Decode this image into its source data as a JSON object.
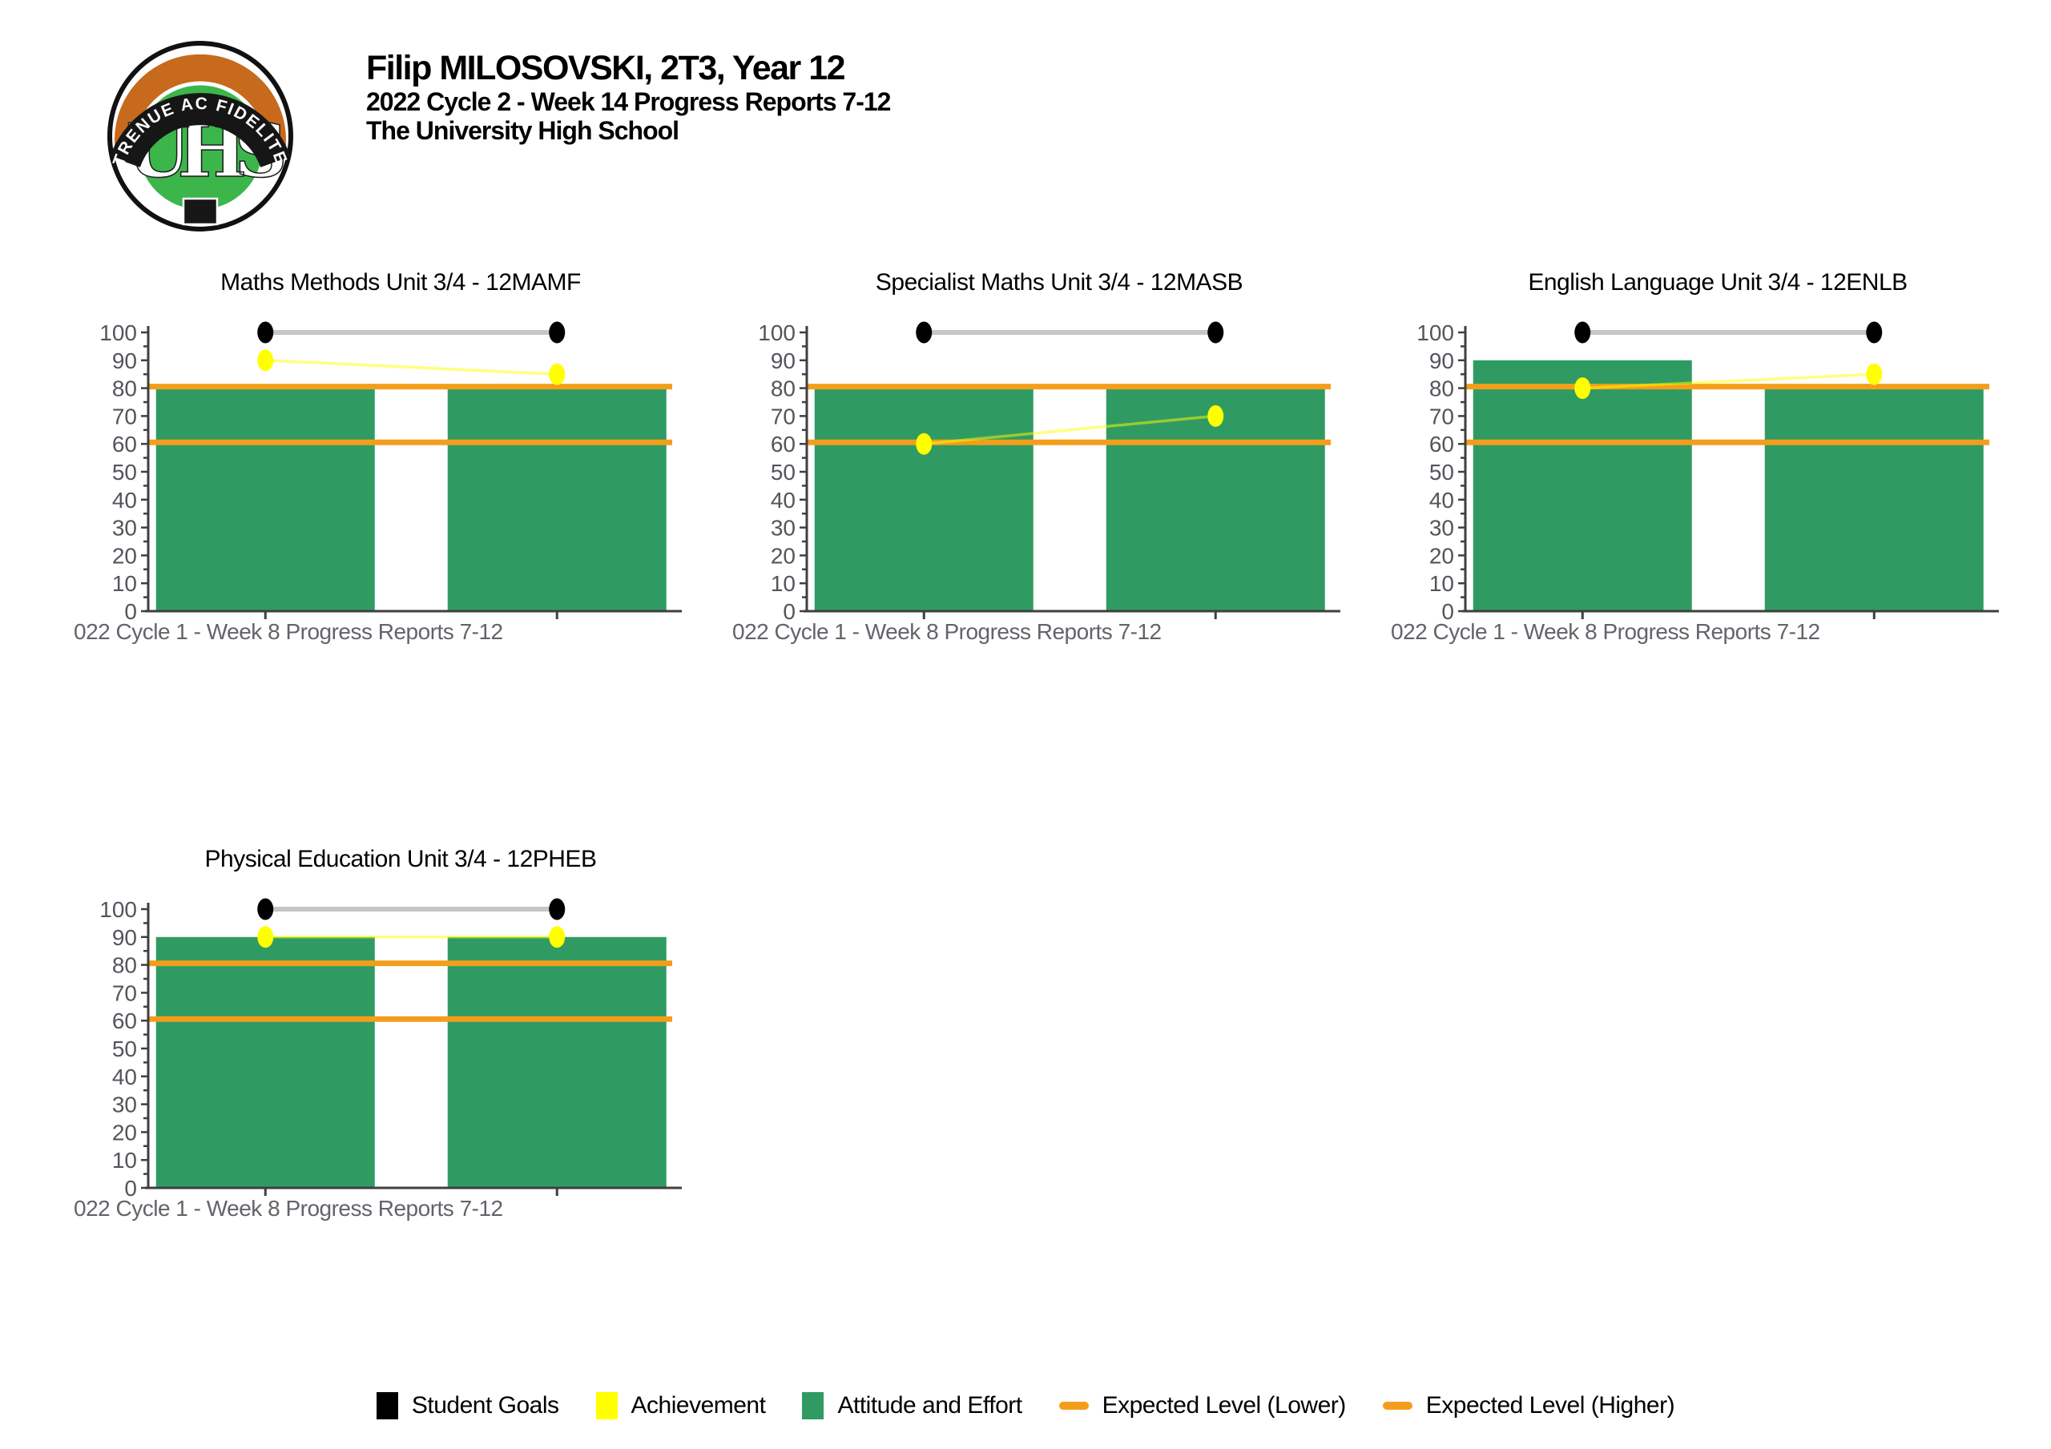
{
  "header": {
    "student_title": "Filip MILOSOVSKI, 2T3, Year 12",
    "report_title": "2022 Cycle 2 - Week 14 Progress Reports 7-12",
    "school_name": "The University High School"
  },
  "logo": {
    "monogram": "UHS",
    "motto": "STRENUE AC FIDELITER",
    "colors": {
      "orange": "#C76A1E",
      "green": "#3CB64A",
      "band": "#161616"
    }
  },
  "colors": {
    "bar_green": "#2F9B63",
    "expected_orange": "#F39E1B",
    "achievement_yellow": "#FFFF00",
    "goal_black": "#000000",
    "goal_line_gray": "#C6C6C6",
    "axis": "#3F3F3F",
    "y_tick_label": "#54545C",
    "x_label_gray": "#63636B"
  },
  "chart_data": [
    {
      "type": "bar",
      "title": "Maths Methods Unit 3/4 - 12MAMF",
      "x_axis_label_visible": "022 Cycle 1 - Week 8 Progress Reports 7-12",
      "ylim": [
        0,
        100
      ],
      "ytick_step": 10,
      "series": [
        {
          "name": "Attitude and Effort",
          "type": "bar",
          "color": "#2F9B63",
          "values": [
            80,
            80
          ]
        },
        {
          "name": "Expected Level (Lower)",
          "type": "hline",
          "color": "#F39E1B",
          "value": 60
        },
        {
          "name": "Expected Level (Higher)",
          "type": "hline",
          "color": "#F39E1B",
          "value": 80
        },
        {
          "name": "Student Goals",
          "type": "line",
          "marker_color": "#000000",
          "line_color": "#C6C6C6",
          "line_width": 6,
          "line_opacity": 1,
          "values": [
            100,
            100
          ]
        },
        {
          "name": "Achievement",
          "type": "line",
          "marker_color": "#FFFF00",
          "line_color": "#FFFF00",
          "line_width": 3.5,
          "line_opacity": 0.5,
          "values": [
            90,
            85
          ]
        }
      ]
    },
    {
      "type": "bar",
      "title": "Specialist Maths Unit 3/4 - 12MASB",
      "x_axis_label_visible": "022 Cycle 1 - Week 8 Progress Reports 7-12",
      "ylim": [
        0,
        100
      ],
      "ytick_step": 10,
      "series": [
        {
          "name": "Attitude and Effort",
          "type": "bar",
          "color": "#2F9B63",
          "values": [
            80,
            80
          ]
        },
        {
          "name": "Expected Level (Lower)",
          "type": "hline",
          "color": "#F39E1B",
          "value": 60
        },
        {
          "name": "Expected Level (Higher)",
          "type": "hline",
          "color": "#F39E1B",
          "value": 80
        },
        {
          "name": "Student Goals",
          "type": "line",
          "marker_color": "#000000",
          "line_color": "#C6C6C6",
          "line_width": 6,
          "line_opacity": 1,
          "values": [
            100,
            100
          ]
        },
        {
          "name": "Achievement",
          "type": "line",
          "marker_color": "#FFFF00",
          "line_color": "#FFFF00",
          "line_width": 3.5,
          "line_opacity": 0.5,
          "values": [
            60,
            70
          ]
        }
      ]
    },
    {
      "type": "bar",
      "title": "English Language Unit 3/4 - 12ENLB",
      "x_axis_label_visible": "022 Cycle 1 - Week 8 Progress Reports 7-12",
      "ylim": [
        0,
        100
      ],
      "ytick_step": 10,
      "series": [
        {
          "name": "Attitude and Effort",
          "type": "bar",
          "color": "#2F9B63",
          "values": [
            90,
            80
          ]
        },
        {
          "name": "Expected Level (Lower)",
          "type": "hline",
          "color": "#F39E1B",
          "value": 60
        },
        {
          "name": "Expected Level (Higher)",
          "type": "hline",
          "color": "#F39E1B",
          "value": 80
        },
        {
          "name": "Student Goals",
          "type": "line",
          "marker_color": "#000000",
          "line_color": "#C6C6C6",
          "line_width": 6,
          "line_opacity": 1,
          "values": [
            100,
            100
          ]
        },
        {
          "name": "Achievement",
          "type": "line",
          "marker_color": "#FFFF00",
          "line_color": "#FFFF00",
          "line_width": 3.5,
          "line_opacity": 0.5,
          "values": [
            80,
            85
          ]
        }
      ]
    },
    {
      "type": "bar",
      "title": "Physical Education Unit 3/4 - 12PHEB",
      "x_axis_label_visible": "022 Cycle 1 - Week 8 Progress Reports 7-12",
      "ylim": [
        0,
        100
      ],
      "ytick_step": 10,
      "series": [
        {
          "name": "Attitude and Effort",
          "type": "bar",
          "color": "#2F9B63",
          "values": [
            90,
            90
          ]
        },
        {
          "name": "Expected Level (Lower)",
          "type": "hline",
          "color": "#F39E1B",
          "value": 60
        },
        {
          "name": "Expected Level (Higher)",
          "type": "hline",
          "color": "#F39E1B",
          "value": 80
        },
        {
          "name": "Student Goals",
          "type": "line",
          "marker_color": "#000000",
          "line_color": "#C6C6C6",
          "line_width": 6,
          "line_opacity": 1,
          "values": [
            100,
            100
          ]
        },
        {
          "name": "Achievement",
          "type": "line",
          "marker_color": "#FFFF00",
          "line_color": "#FFFF00",
          "line_width": 3.5,
          "line_opacity": 0.5,
          "values": [
            90,
            90
          ]
        }
      ]
    }
  ],
  "legend": {
    "items": [
      {
        "label": "Student Goals",
        "shape": "square",
        "color": "#000000"
      },
      {
        "label": "Achievement",
        "shape": "square",
        "color": "#FFFF00"
      },
      {
        "label": "Attitude and Effort",
        "shape": "square",
        "color": "#2F9B63"
      },
      {
        "label": "Expected Level (Lower)",
        "shape": "dash",
        "color": "#F39E1B"
      },
      {
        "label": "Expected Level (Higher)",
        "shape": "dash",
        "color": "#F39E1B"
      }
    ]
  }
}
